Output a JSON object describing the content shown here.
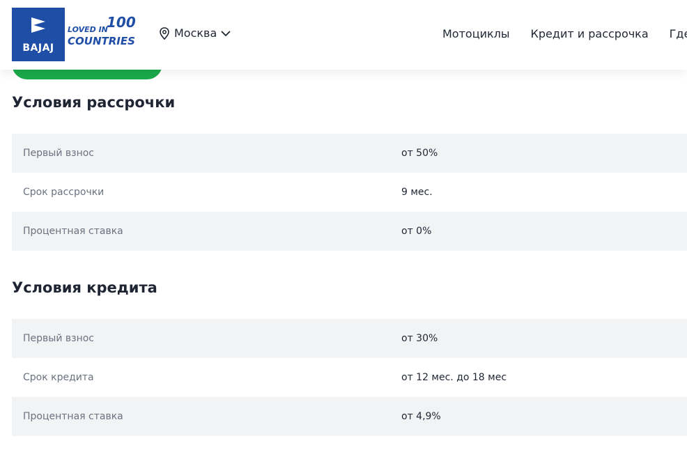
{
  "header": {
    "logo": {
      "brand": "BAJAJ",
      "tagline_top": "LOVED IN",
      "tagline_number": "100",
      "tagline_bottom": "COUNTRIES"
    },
    "city": "Москва",
    "nav": [
      "Мотоциклы",
      "Кредит и рассрочка",
      "Где купить"
    ]
  },
  "sections": [
    {
      "title": "Условия рассрочки",
      "rows": [
        [
          "Первый взнос",
          "от 50%"
        ],
        [
          "Срок рассрочки",
          "9 мес."
        ],
        [
          "Процентная ставка",
          "от 0%"
        ]
      ]
    },
    {
      "title": "Условия кредита",
      "rows": [
        [
          "Первый взнос",
          "от 30%"
        ],
        [
          "Срок кредита",
          "от 12 мес. до 18 мес"
        ],
        [
          "Процентная ставка",
          "от 4,9%"
        ]
      ]
    }
  ]
}
